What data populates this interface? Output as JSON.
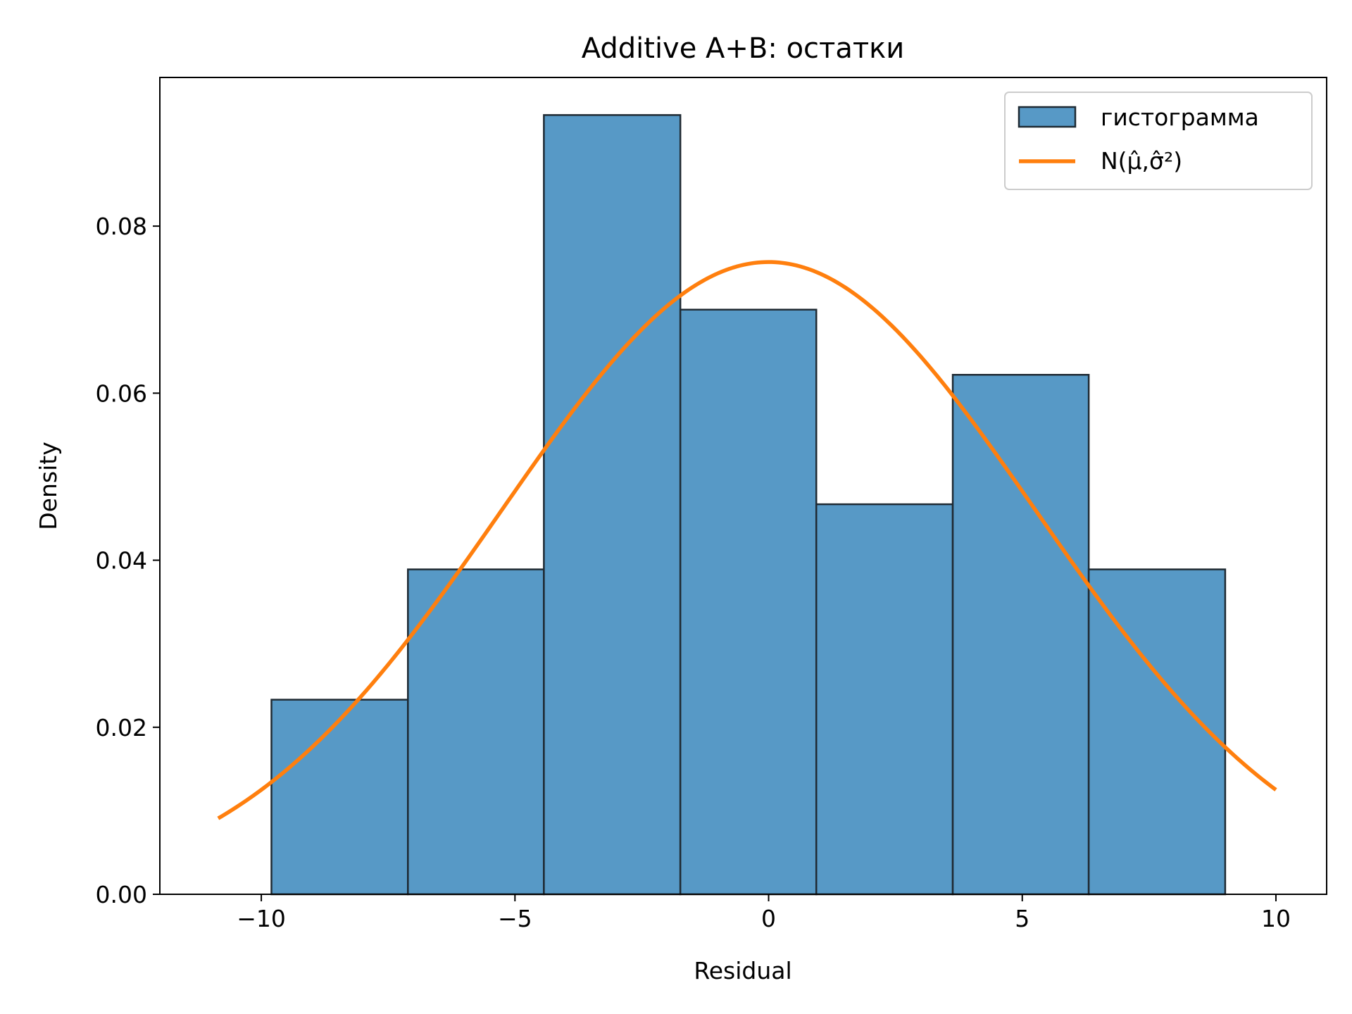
{
  "chart_data": {
    "type": "histogram",
    "title": "Additive A+B: остатки",
    "xlabel": "Residual",
    "ylabel": "Density",
    "xlim": [
      -12,
      11
    ],
    "ylim": [
      0,
      0.0978
    ],
    "xticks": [
      -10,
      -5,
      0,
      5,
      10
    ],
    "xtick_labels": [
      "−10",
      "−5",
      "0",
      "5",
      "10"
    ],
    "yticks": [
      0,
      0.02,
      0.04,
      0.06,
      0.08
    ],
    "ytick_labels": [
      "0.00",
      "0.02",
      "0.04",
      "0.06",
      "0.08"
    ],
    "grid": false,
    "legend_position": "top-right",
    "histogram": {
      "name": "гистограмма",
      "color": "#5799c6",
      "edge_color": "#1f2a33",
      "bin_edges": [
        -9.8,
        -7.11,
        -4.43,
        -1.74,
        0.94,
        3.63,
        6.31,
        9.0
      ],
      "densities": [
        0.0233,
        0.0389,
        0.0933,
        0.07,
        0.0467,
        0.0622,
        0.0389
      ]
    },
    "normal_fit": {
      "name": "N(μ̂,σ̂²)",
      "color": "#ff7f0e",
      "mu": 0.0,
      "sigma": 5.27,
      "x_range": [
        -10.85,
        10.0
      ]
    }
  }
}
